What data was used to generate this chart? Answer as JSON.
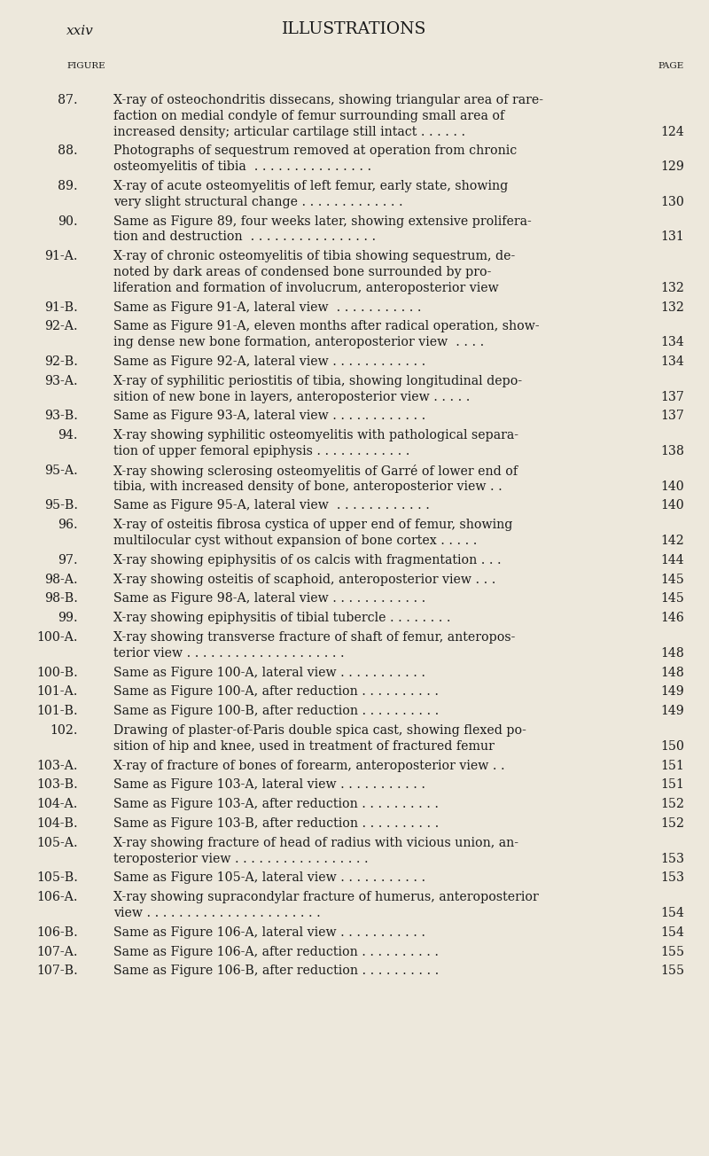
{
  "page_header_left": "xxiv",
  "page_header_center": "ILLUSTRATIONS",
  "col_header_left": "FIGURE",
  "col_header_right": "PAGE",
  "background_color": "#EDE8DC",
  "text_color": "#1a1a1a",
  "entries": [
    {
      "fig": "87.",
      "lines": [
        "X-ray of osteochondritis dissecans, showing triangular area of rare-",
        "faction on medial condyle of femur surrounding small area of",
        "increased density; articular cartilage still intact . . . . . ."
      ],
      "page": "124"
    },
    {
      "fig": "88.",
      "lines": [
        "Photographs of sequestrum removed at operation from chronic",
        "osteomyelitis of tibia  . . . . . . . . . . . . . . ."
      ],
      "page": "129"
    },
    {
      "fig": "89.",
      "lines": [
        "X-ray of acute osteomyelitis of left femur, early state, showing",
        "very slight structural change . . . . . . . . . . . . ."
      ],
      "page": "130"
    },
    {
      "fig": "90.",
      "lines": [
        "Same as Figure 89, four weeks later, showing extensive prolifera-",
        "tion and destruction  . . . . . . . . . . . . . . . ."
      ],
      "page": "131"
    },
    {
      "fig": "91-A.",
      "lines": [
        "X-ray of chronic osteomyelitis of tibia showing sequestrum, de-",
        "noted by dark areas of condensed bone surrounded by pro-",
        "liferation and formation of involucrum, anteroposterior view"
      ],
      "page": "132"
    },
    {
      "fig": "91-B.",
      "lines": [
        "Same as Figure 91-A, lateral view  . . . . . . . . . . ."
      ],
      "page": "132"
    },
    {
      "fig": "92-A.",
      "lines": [
        "Same as Figure 91-A, eleven months after radical operation, show-",
        "ing dense new bone formation, anteroposterior view  . . . ."
      ],
      "page": "134"
    },
    {
      "fig": "92-B.",
      "lines": [
        "Same as Figure 92-A, lateral view . . . . . . . . . . . ."
      ],
      "page": "134"
    },
    {
      "fig": "93-A.",
      "lines": [
        "X-ray of syphilitic periostitis of tibia, showing longitudinal depo-",
        "sition of new bone in layers, anteroposterior view . . . . ."
      ],
      "page": "137"
    },
    {
      "fig": "93-B.",
      "lines": [
        "Same as Figure 93-A, lateral view . . . . . . . . . . . ."
      ],
      "page": "137"
    },
    {
      "fig": "94.",
      "lines": [
        "X-ray showing syphilitic osteomyelitis with pathological separa-",
        "tion of upper femoral epiphysis . . . . . . . . . . . ."
      ],
      "page": "138"
    },
    {
      "fig": "95-A.",
      "lines": [
        "X-ray showing sclerosing osteomyelitis of Garré of lower end of",
        "tibia, with increased density of bone, anteroposterior view . ."
      ],
      "page": "140"
    },
    {
      "fig": "95-B.",
      "lines": [
        "Same as Figure 95-A, lateral view  . . . . . . . . . . . ."
      ],
      "page": "140"
    },
    {
      "fig": "96.",
      "lines": [
        "X-ray of osteitis fibrosa cystica of upper end of femur, showing",
        "multilocular cyst without expansion of bone cortex . . . . ."
      ],
      "page": "142"
    },
    {
      "fig": "97.",
      "lines": [
        "X-ray showing epiphysitis of os calcis with fragmentation . . ."
      ],
      "page": "144"
    },
    {
      "fig": "98-A.",
      "lines": [
        "X-ray showing osteitis of scaphoid, anteroposterior view . . ."
      ],
      "page": "145"
    },
    {
      "fig": "98-B.",
      "lines": [
        "Same as Figure 98-A, lateral view . . . . . . . . . . . ."
      ],
      "page": "145"
    },
    {
      "fig": "99.",
      "lines": [
        "X-ray showing epiphysitis of tibial tubercle . . . . . . . ."
      ],
      "page": "146"
    },
    {
      "fig": "100-A.",
      "lines": [
        "X-ray showing transverse fracture of shaft of femur, anteropos-",
        "terior view . . . . . . . . . . . . . . . . . . . ."
      ],
      "page": "148"
    },
    {
      "fig": "100-B.",
      "lines": [
        "Same as Figure 100-A, lateral view . . . . . . . . . . ."
      ],
      "page": "148"
    },
    {
      "fig": "101-A.",
      "lines": [
        "Same as Figure 100-A, after reduction . . . . . . . . . ."
      ],
      "page": "149"
    },
    {
      "fig": "101-B.",
      "lines": [
        "Same as Figure 100-B, after reduction . . . . . . . . . ."
      ],
      "page": "149"
    },
    {
      "fig": "102.",
      "lines": [
        "Drawing of plaster-of-Paris double spica cast, showing flexed po-",
        "sition of hip and knee, used in treatment of fractured femur"
      ],
      "page": "150"
    },
    {
      "fig": "103-A.",
      "lines": [
        "X-ray of fracture of bones of forearm, anteroposterior view . ."
      ],
      "page": "151"
    },
    {
      "fig": "103-B.",
      "lines": [
        "Same as Figure 103-A, lateral view . . . . . . . . . . ."
      ],
      "page": "151"
    },
    {
      "fig": "104-A.",
      "lines": [
        "Same as Figure 103-A, after reduction . . . . . . . . . ."
      ],
      "page": "152"
    },
    {
      "fig": "104-B.",
      "lines": [
        "Same as Figure 103-B, after reduction . . . . . . . . . ."
      ],
      "page": "152"
    },
    {
      "fig": "105-A.",
      "lines": [
        "X-ray showing fracture of head of radius with vicious union, an-",
        "teroposterior view . . . . . . . . . . . . . . . . ."
      ],
      "page": "153"
    },
    {
      "fig": "105-B.",
      "lines": [
        "Same as Figure 105-A, lateral view . . . . . . . . . . ."
      ],
      "page": "153"
    },
    {
      "fig": "106-A.",
      "lines": [
        "X-ray showing supracondylar fracture of humerus, anteroposterior",
        "view . . . . . . . . . . . . . . . . . . . . . ."
      ],
      "page": "154"
    },
    {
      "fig": "106-B.",
      "lines": [
        "Same as Figure 106-A, lateral view . . . . . . . . . . ."
      ],
      "page": "154"
    },
    {
      "fig": "107-A.",
      "lines": [
        "Same as Figure 106-A, after reduction . . . . . . . . . ."
      ],
      "page": "155"
    },
    {
      "fig": "107-B.",
      "lines": [
        "Same as Figure 106-B, after reduction . . . . . . . . . ."
      ],
      "page": "155"
    }
  ]
}
